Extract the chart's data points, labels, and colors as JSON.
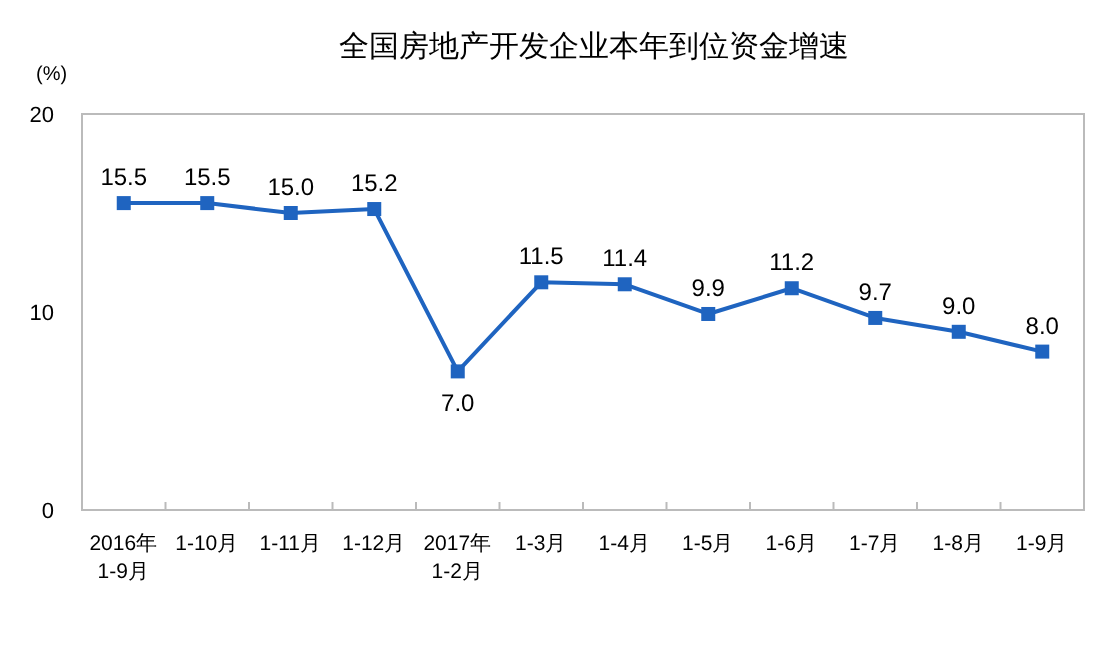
{
  "chart_data": {
    "type": "line",
    "title": "全国房地产开发企业本年到位资金增速",
    "ylabel": "(%)",
    "categories": [
      "2016年\n1-9月",
      "1-10月",
      "1-11月",
      "1-12月",
      "2017年\n1-2月",
      "1-3月",
      "1-4月",
      "1-5月",
      "1-6月",
      "1-7月",
      "1-8月",
      "1-9月"
    ],
    "series": [
      {
        "color": "#1f64c0",
        "values": [
          15.5,
          15.5,
          15.0,
          15.2,
          7.0,
          11.5,
          11.4,
          9.9,
          11.2,
          9.7,
          9.0,
          8.0
        ],
        "value_labels": [
          "15.5",
          "15.5",
          "15.0",
          "15.2",
          "7.0",
          "11.5",
          "11.4",
          "9.9",
          "11.2",
          "9.7",
          "9.0",
          "8.0"
        ]
      }
    ],
    "ylim": [
      0,
      20
    ],
    "yticks": [
      0,
      10,
      20
    ],
    "grid": false,
    "marker": "square",
    "line_style": "solid"
  }
}
